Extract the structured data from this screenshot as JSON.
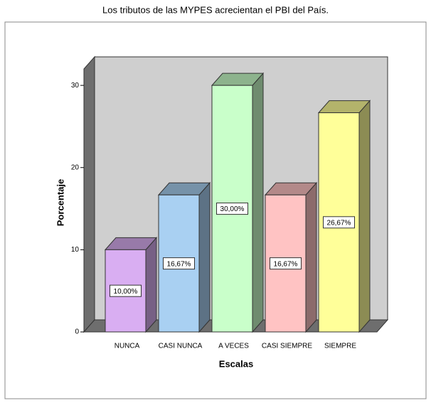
{
  "chart_data": {
    "type": "bar",
    "title": "Los tributos de las MYPES acrecientan el PBI del País.",
    "x_label": "Escalas",
    "y_label": "Porcentaje",
    "categories": [
      "NUNCA",
      "CASI NUNCA",
      "A VECES",
      "CASI SIEMPRE",
      "SIEMPRE"
    ],
    "values": [
      10,
      16.67,
      30,
      16.67,
      26.67
    ],
    "value_labels": [
      "10,00%",
      "16,67%",
      "30,00%",
      "16,67%",
      "26,67%"
    ],
    "colors": [
      "#d9aef2",
      "#a9d0f2",
      "#c9ffca",
      "#ffc3c3",
      "#ffff99"
    ],
    "ylim": [
      0,
      32
    ],
    "yticks": [
      0,
      10,
      20,
      30
    ]
  }
}
